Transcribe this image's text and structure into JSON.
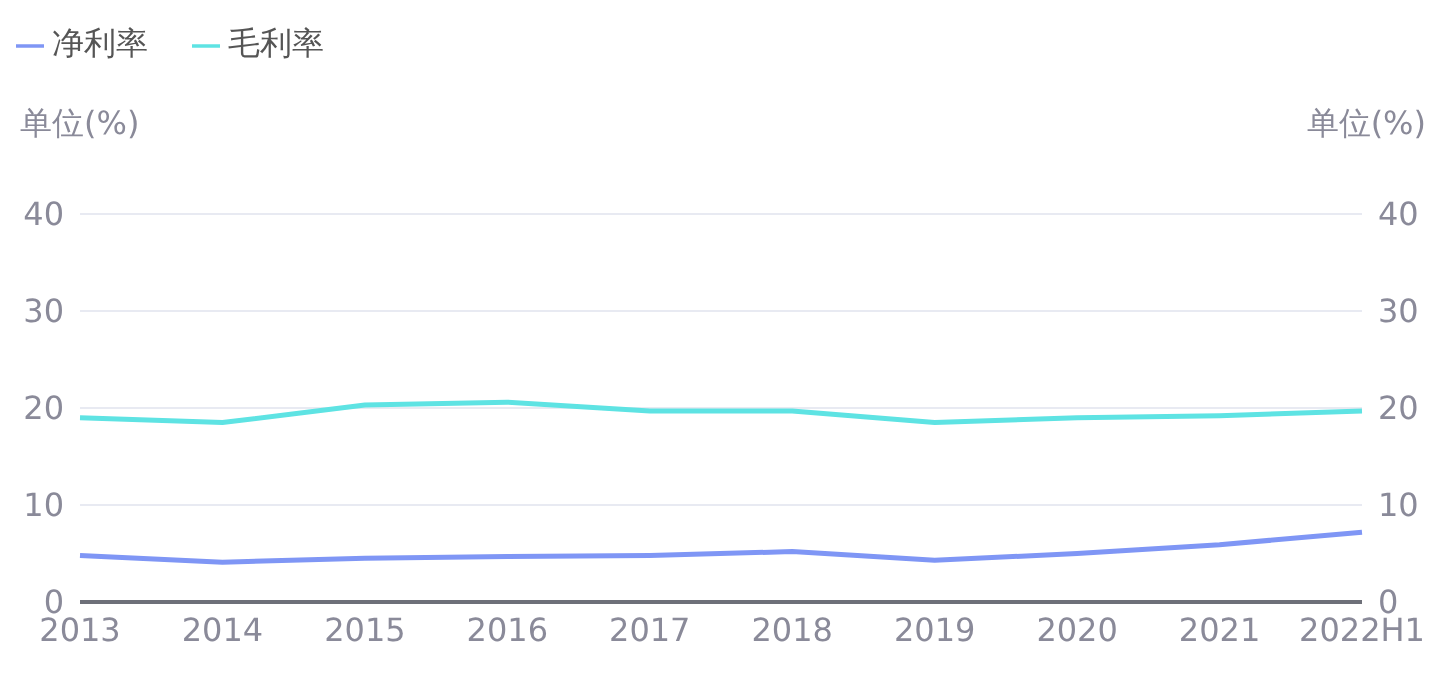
{
  "chart_data": {
    "type": "line",
    "categories": [
      "2013",
      "2014",
      "2015",
      "2016",
      "2017",
      "2018",
      "2019",
      "2020",
      "2021",
      "2022H1"
    ],
    "series": [
      {
        "name": "毛利率",
        "color": "#5ee3e3",
        "values": [
          19.0,
          18.5,
          20.3,
          20.6,
          19.7,
          19.7,
          18.5,
          19.0,
          19.2,
          19.7
        ]
      },
      {
        "name": "净利率",
        "color": "#7f96f5",
        "values": [
          4.8,
          4.1,
          4.5,
          4.7,
          4.8,
          5.2,
          4.3,
          5.0,
          5.9,
          7.2
        ]
      }
    ],
    "ylabel": "单位(%)",
    "y2label": "单位(%)",
    "ylim": [
      0,
      40
    ],
    "yticks": [
      0,
      10,
      20,
      30,
      40
    ],
    "y2lim": [
      0,
      40
    ],
    "y2ticks": [
      0,
      10,
      20,
      30,
      40
    ],
    "grid": "y",
    "legend": "top left",
    "marker": "none",
    "line_style": "solid"
  }
}
